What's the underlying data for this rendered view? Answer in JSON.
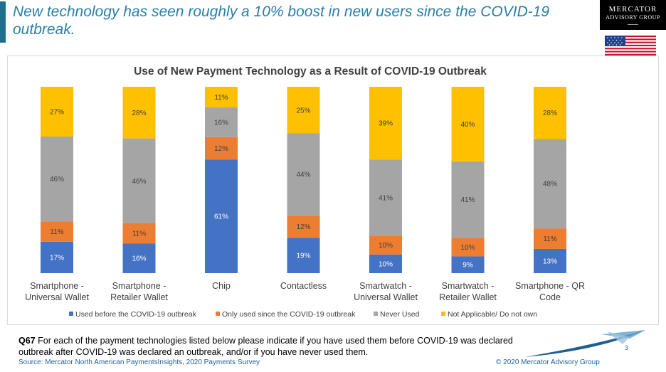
{
  "slide": {
    "headline": "New technology has seen roughly a 10% boost in new users since the COVID-19 outbreak.",
    "logo": {
      "line1": "MERCATOR",
      "line2": "ADVISORY GROUP"
    },
    "page_number": "3"
  },
  "footer": {
    "question_id": "Q67",
    "question_text": " For each of the payment technologies listed below please indicate if you have used them before COVID-19 was declared outbreak after COVID-19 was declared an outbreak, and/or if you have never used them.",
    "source": "Source: Mercator North American PaymentsInsights, 2020 Payments Survey",
    "copyright": "© 2020 Mercator Advisory Group"
  },
  "chart_data": {
    "type": "bar",
    "stacked": true,
    "title": "Use of New Payment Technology as a Result of COVID-19 Outbreak",
    "categories": [
      [
        "Smartphone -",
        "Universal Wallet"
      ],
      [
        "Smartphone -",
        "Retailer Wallet"
      ],
      [
        "Chip"
      ],
      [
        "Contactless"
      ],
      [
        "Smartwatch -",
        "Universal Wallet"
      ],
      [
        "Smartwatch -",
        "Retailer Wallet"
      ],
      [
        "Smartphone - QR",
        "Code"
      ]
    ],
    "series": [
      {
        "name": "Used before the COVID-19 outbreak",
        "color": "#4472c4",
        "label_color": "#ffffff",
        "values": [
          17,
          16,
          61,
          19,
          10,
          9,
          13
        ]
      },
      {
        "name": "Only used since the COVID-19 outbreak",
        "color": "#ed7d31",
        "label_color": "#404040",
        "values": [
          11,
          11,
          12,
          12,
          10,
          10,
          11
        ]
      },
      {
        "name": "Never Used",
        "color": "#a5a5a5",
        "label_color": "#404040",
        "values": [
          46,
          46,
          16,
          44,
          41,
          41,
          48
        ]
      },
      {
        "name": "Not Applicable/ Do not own",
        "color": "#ffc000",
        "label_color": "#404040",
        "values": [
          27,
          28,
          11,
          25,
          39,
          40,
          28
        ]
      }
    ],
    "value_suffix": "%",
    "legend_position": "bottom",
    "grid": false
  }
}
